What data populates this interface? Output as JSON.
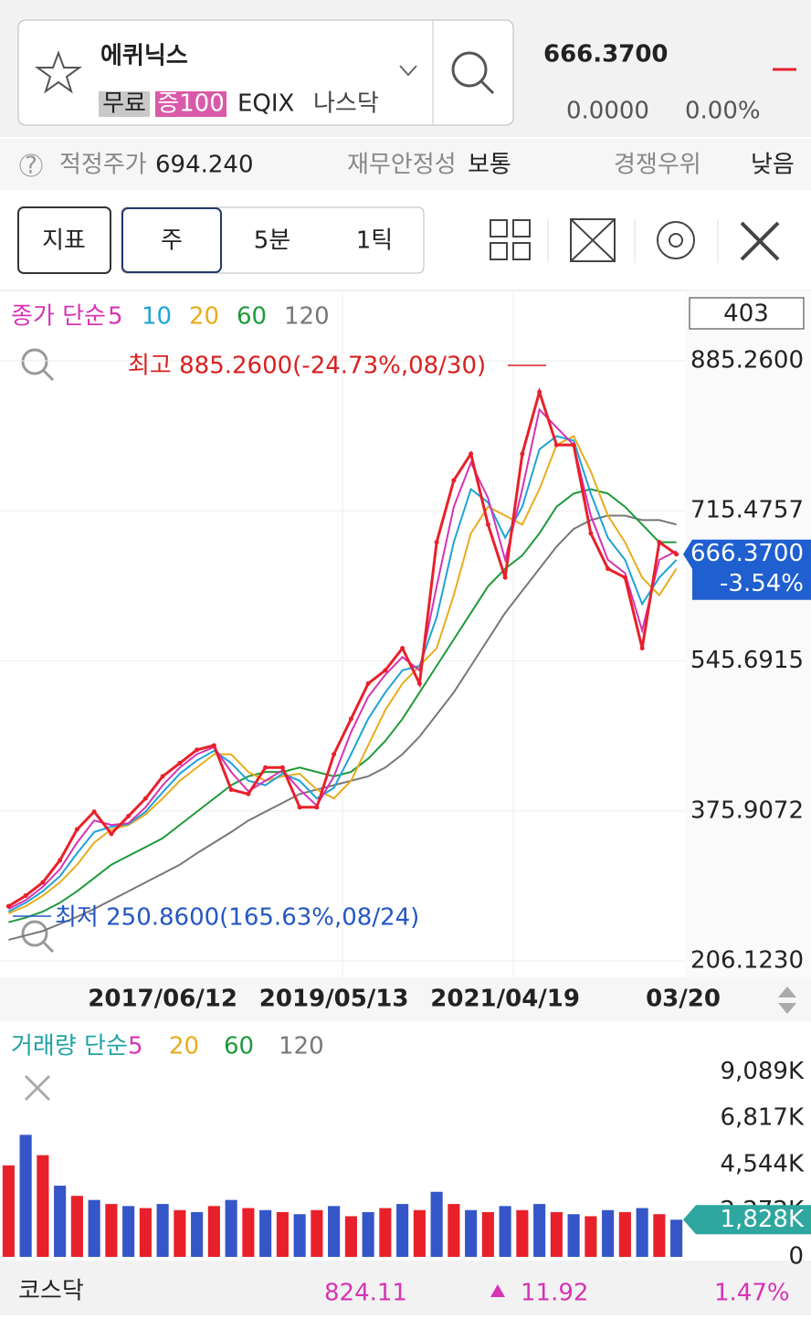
{
  "header": {
    "name": "에퀴닉스",
    "tags": [
      "무료",
      "증100"
    ],
    "symbol": "EQIX",
    "exchange": "나스닥",
    "price": "666.3700",
    "change": "0.0000",
    "change_pct": "0.00%"
  },
  "info": {
    "fair_label": "적정주가",
    "fair_value": "694.240",
    "stability_label": "재무안정성",
    "stability_value": "보통",
    "competition_label": "경쟁우위",
    "competition_value": "낮음"
  },
  "toolbar": {
    "indicator": "지표",
    "periods": [
      "주",
      "5분",
      "1틱"
    ]
  },
  "chart_data": [
    {
      "type": "line",
      "legend_title": "종가 단순",
      "count": "403",
      "high_label": "최고 885.2600(-24.73%,08/30)",
      "low_label": "최저 250.8600(165.63%,08/24)",
      "last_label": "666.3700",
      "last_change": "-3.54%",
      "categories": [
        null,
        null,
        null,
        null,
        null,
        null,
        null,
        null,
        null,
        "2017/06/12",
        null,
        null,
        null,
        null,
        null,
        null,
        null,
        null,
        null,
        "2019/05/13",
        null,
        null,
        null,
        null,
        null,
        null,
        null,
        null,
        null,
        "2021/04/19",
        null,
        null,
        null,
        null,
        null,
        null,
        null,
        null,
        null,
        "03/20"
      ],
      "values": [
        268,
        280,
        295,
        320,
        355,
        375,
        350,
        370,
        390,
        415,
        430,
        445,
        450,
        400,
        395,
        425,
        425,
        380,
        380,
        440,
        480,
        520,
        535,
        560,
        520,
        680,
        750,
        780,
        700,
        640,
        780,
        850,
        790,
        790,
        690,
        650,
        640,
        560,
        680,
        666.37
      ],
      "color": "#e8202a",
      "series": [
        {
          "name": "5",
          "color": "#d633b5",
          "values": [
            265,
            275,
            290,
            310,
            340,
            365,
            360,
            362,
            380,
            405,
            425,
            440,
            448,
            420,
            398,
            410,
            422,
            400,
            382,
            415,
            465,
            505,
            530,
            550,
            535,
            630,
            720,
            770,
            730,
            660,
            740,
            830,
            810,
            790,
            710,
            660,
            645,
            580,
            660,
            670
          ]
        },
        {
          "name": "10",
          "color": "#1fa3d6",
          "values": [
            262,
            272,
            285,
            302,
            328,
            352,
            358,
            361,
            375,
            397,
            418,
            433,
            444,
            430,
            410,
            405,
            418,
            410,
            390,
            402,
            440,
            480,
            510,
            535,
            540,
            595,
            680,
            740,
            725,
            685,
            720,
            785,
            800,
            795,
            735,
            685,
            660,
            610,
            640,
            660
          ]
        },
        {
          "name": "20",
          "color": "#e8ac1c",
          "values": [
            260,
            268,
            280,
            295,
            315,
            340,
            355,
            360,
            372,
            390,
            410,
            425,
            440,
            440,
            420,
            410,
            415,
            418,
            400,
            390,
            410,
            450,
            490,
            520,
            540,
            560,
            620,
            690,
            720,
            710,
            700,
            740,
            790,
            800,
            760,
            710,
            680,
            640,
            620,
            650
          ]
        },
        {
          "name": "60",
          "color": "#1e9a3a",
          "values": [
            250,
            255,
            262,
            272,
            285,
            300,
            315,
            325,
            335,
            345,
            360,
            375,
            390,
            405,
            415,
            420,
            420,
            425,
            420,
            415,
            420,
            435,
            455,
            480,
            510,
            540,
            570,
            600,
            630,
            650,
            665,
            690,
            720,
            735,
            740,
            735,
            720,
            700,
            680,
            680
          ]
        },
        {
          "name": "120",
          "color": "#777777",
          "values": [
            230,
            235,
            240,
            248,
            256,
            265,
            275,
            285,
            295,
            305,
            315,
            328,
            340,
            352,
            365,
            375,
            385,
            395,
            400,
            405,
            410,
            415,
            425,
            440,
            460,
            485,
            510,
            540,
            570,
            600,
            625,
            650,
            675,
            695,
            705,
            710,
            710,
            705,
            705,
            700
          ]
        }
      ],
      "ylim": [
        192.7,
        957.6
      ],
      "yticks": [
        {
          "value": 206.123,
          "label": "206.1230"
        },
        375.9072,
        545.6915,
        715.4757,
        {
          "value": 885.26,
          "label": "885.2600"
        }
      ]
    },
    {
      "type": "bar",
      "legend_title": "거래량 단순",
      "legend_periods": [
        {
          "name": "5",
          "color": "#d633b5"
        },
        {
          "name": "20",
          "color": "#e8ac1c"
        },
        {
          "name": "60",
          "color": "#1e9a3a"
        },
        {
          "name": "120",
          "color": "#777777"
        }
      ],
      "values": [
        4500,
        6000,
        5000,
        3500,
        3000,
        2800,
        2600,
        2500,
        2400,
        2600,
        2300,
        2200,
        2500,
        2800,
        2400,
        2300,
        2200,
        2100,
        2300,
        2500,
        2000,
        2200,
        2400,
        2600,
        2300,
        3200,
        2600,
        2300,
        2200,
        2500,
        2300,
        2600,
        2200,
        2100,
        2000,
        2300,
        2200,
        2400,
        2100,
        1828
      ],
      "colors": [
        "#e8202a",
        "#3556c8"
      ],
      "last_value": 1828,
      "last_label": "1,828K",
      "ylim": [
        0,
        9700
      ],
      "yticks": [
        0,
        {
          "value": 2272,
          "label": "2,272K"
        },
        {
          "value": 4544,
          "label": "4,544K"
        },
        {
          "value": 6817,
          "label": "6,817K"
        },
        {
          "value": 9089,
          "label": "9,089K"
        }
      ]
    }
  ],
  "footer": {
    "name": "코스닥",
    "value": "824.11",
    "change": "11.92",
    "change_pct": "1.47%"
  }
}
